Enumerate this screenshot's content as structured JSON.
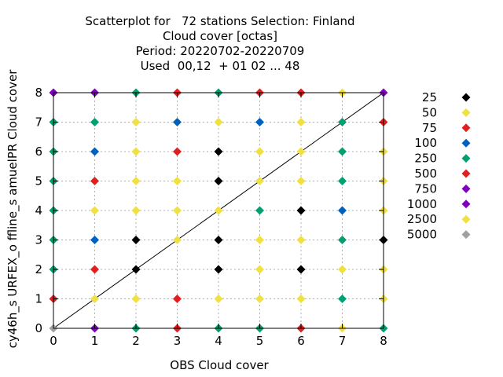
{
  "chart_data": {
    "type": "scatter",
    "title_lines": [
      "Scatterplot for   72 stations Selection: Finland",
      "Cloud cover [octas]",
      "Period: 20220702-20220709",
      "Used  00,12  + 01 02 ... 48"
    ],
    "xlabel": "OBS Cloud cover",
    "ylabel": "cy46h_s URFEX_o ffline_s amuelPR Cloud cover",
    "xlim": [
      0,
      8
    ],
    "ylim": [
      0,
      8
    ],
    "xticks": [
      "0",
      "1",
      "2",
      "3",
      "4",
      "5",
      "6",
      "7",
      "8"
    ],
    "yticks": [
      "0",
      "1",
      "2",
      "3",
      "4",
      "5",
      "6",
      "7",
      "8"
    ],
    "grid": true,
    "diagonal_line": true,
    "legend_position": "right",
    "series": [
      {
        "name": "25",
        "color": "#000000",
        "points": [
          [
            2,
            2
          ],
          [
            2,
            3
          ],
          [
            4,
            2
          ],
          [
            4,
            3
          ],
          [
            4,
            5
          ],
          [
            4,
            6
          ],
          [
            6,
            2
          ],
          [
            6,
            4
          ],
          [
            8,
            3
          ]
        ]
      },
      {
        "name": "50",
        "color": "#f0e040",
        "points": [
          [
            1,
            1
          ],
          [
            1,
            4
          ],
          [
            2,
            1
          ],
          [
            2,
            4
          ],
          [
            2,
            5
          ],
          [
            2,
            6
          ],
          [
            2,
            7
          ],
          [
            3,
            3
          ],
          [
            3,
            4
          ],
          [
            3,
            5
          ],
          [
            4,
            1
          ],
          [
            4,
            4
          ],
          [
            4,
            7
          ],
          [
            5,
            1
          ],
          [
            5,
            2
          ],
          [
            5,
            3
          ],
          [
            5,
            5
          ],
          [
            5,
            6
          ],
          [
            6,
            1
          ],
          [
            6,
            3
          ],
          [
            6,
            5
          ],
          [
            6,
            6
          ],
          [
            6,
            7
          ],
          [
            7,
            2
          ],
          [
            7,
            8
          ],
          [
            8,
            1
          ],
          [
            8,
            2
          ],
          [
            8,
            4
          ],
          [
            8,
            5
          ],
          [
            8,
            6
          ]
        ]
      },
      {
        "name": "75",
        "color": "#e02020",
        "points": [
          [
            0,
            1
          ],
          [
            1,
            2
          ],
          [
            1,
            5
          ],
          [
            3,
            1
          ],
          [
            3,
            6
          ],
          [
            3,
            8
          ],
          [
            5,
            8
          ],
          [
            6,
            8
          ],
          [
            8,
            7
          ]
        ]
      },
      {
        "name": "100",
        "color": "#0060c0",
        "points": [
          [
            1,
            3
          ],
          [
            1,
            6
          ],
          [
            3,
            7
          ],
          [
            5,
            7
          ],
          [
            7,
            4
          ]
        ]
      },
      {
        "name": "250",
        "color": "#00a070",
        "points": [
          [
            0,
            2
          ],
          [
            0,
            3
          ],
          [
            0,
            4
          ],
          [
            0,
            5
          ],
          [
            0,
            6
          ],
          [
            0,
            7
          ],
          [
            1,
            7
          ],
          [
            2,
            0
          ],
          [
            2,
            8
          ],
          [
            4,
            0
          ],
          [
            4,
            8
          ],
          [
            5,
            0
          ],
          [
            5,
            4
          ],
          [
            7,
            1
          ],
          [
            7,
            3
          ],
          [
            7,
            5
          ],
          [
            7,
            6
          ],
          [
            7,
            7
          ],
          [
            8,
            0
          ]
        ]
      },
      {
        "name": "500",
        "color": "#e02020",
        "points": [
          [
            3,
            0
          ],
          [
            6,
            0
          ]
        ]
      },
      {
        "name": "750",
        "color": "#8000c0",
        "points": [
          [
            0,
            8
          ],
          [
            1,
            8
          ]
        ]
      },
      {
        "name": "1000",
        "color": "#8000c0",
        "points": [
          [
            1,
            0
          ],
          [
            8,
            8
          ]
        ]
      },
      {
        "name": "2500",
        "color": "#f0e040",
        "points": [
          [
            7,
            0
          ]
        ]
      },
      {
        "name": "5000",
        "color": "#a0a0a0",
        "points": [
          [
            0,
            0
          ]
        ]
      }
    ]
  }
}
